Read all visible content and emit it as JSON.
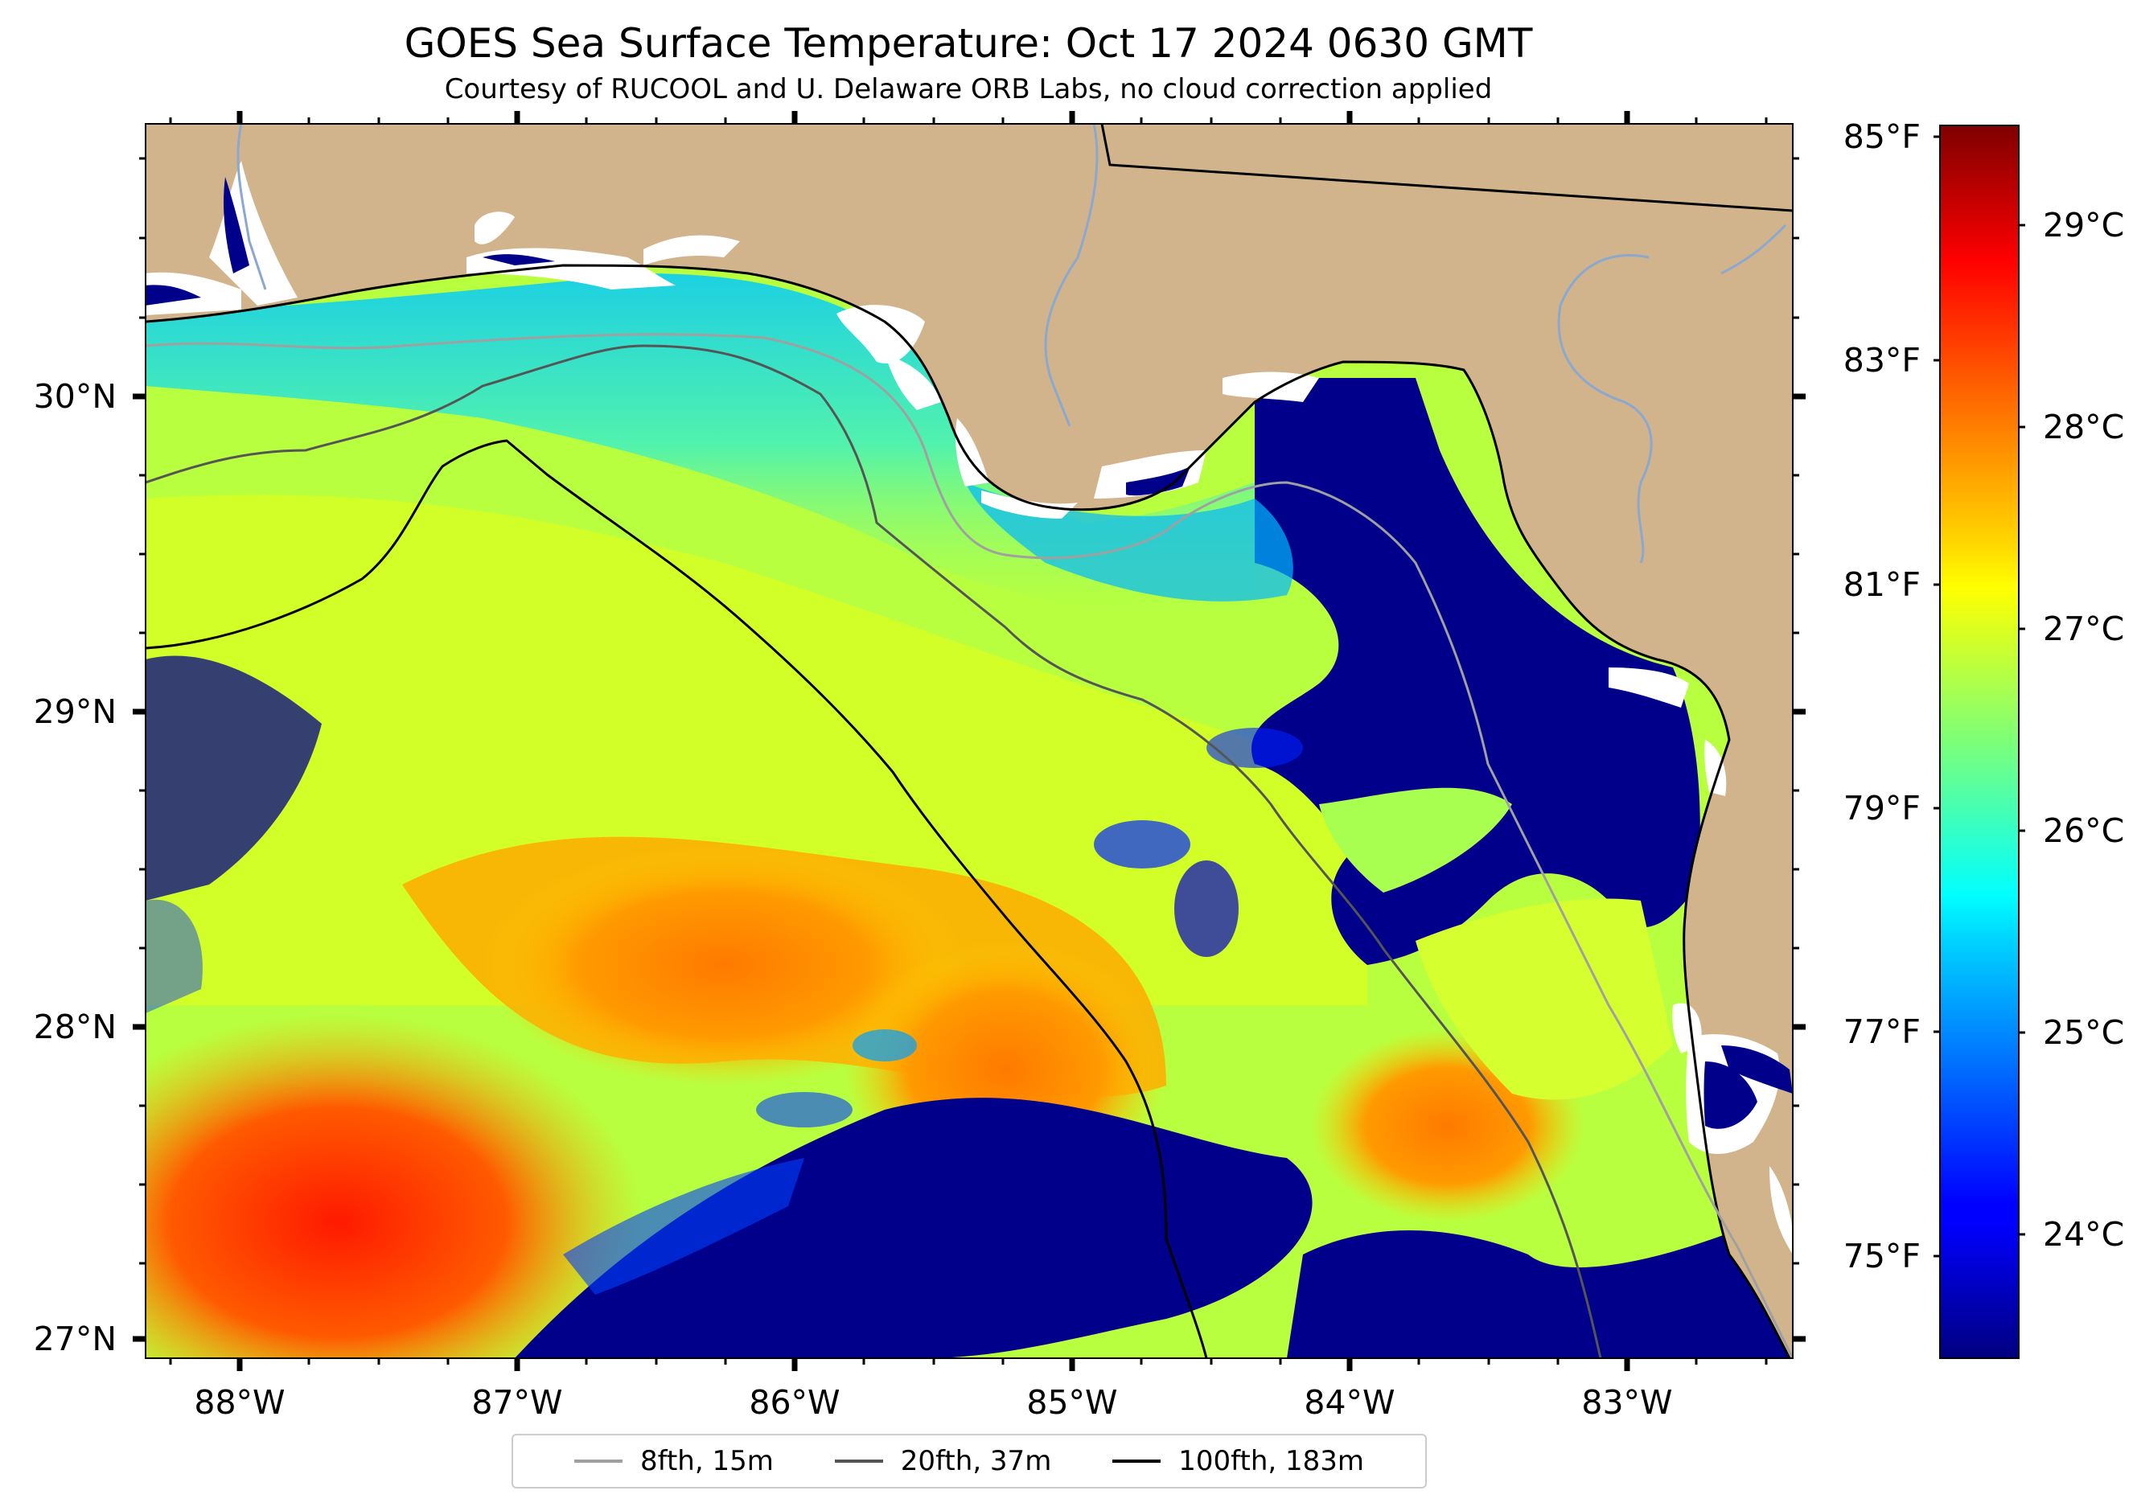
{
  "title": "GOES Sea Surface Temperature: Oct 17 2024 0630 GMT",
  "subtitle": "Courtesy of RUCOOL and U. Delaware ORB Labs, no cloud correction applied",
  "map": {
    "land_color": "#d2b48c",
    "cloud_color": "#00008b",
    "lat_labels": [
      "30°N",
      "29°N",
      "28°N",
      "27°N"
    ],
    "lon_labels": [
      "88°W",
      "87°W",
      "86°W",
      "85°W",
      "84°W",
      "83°W"
    ]
  },
  "colorbar": {
    "fahrenheit_labels": [
      "85°F",
      "83°F",
      "81°F",
      "79°F",
      "77°F",
      "75°F"
    ],
    "celsius_labels": [
      "29°C",
      "28°C",
      "27°C",
      "26°C",
      "25°C",
      "24°C"
    ],
    "colormap": "jet"
  },
  "legend": {
    "items": [
      {
        "label": "8fth, 15m",
        "color": "#a0a0a0"
      },
      {
        "label": "20fth, 37m",
        "color": "#555555"
      },
      {
        "label": "100fth, 183m",
        "color": "#000000"
      }
    ]
  }
}
